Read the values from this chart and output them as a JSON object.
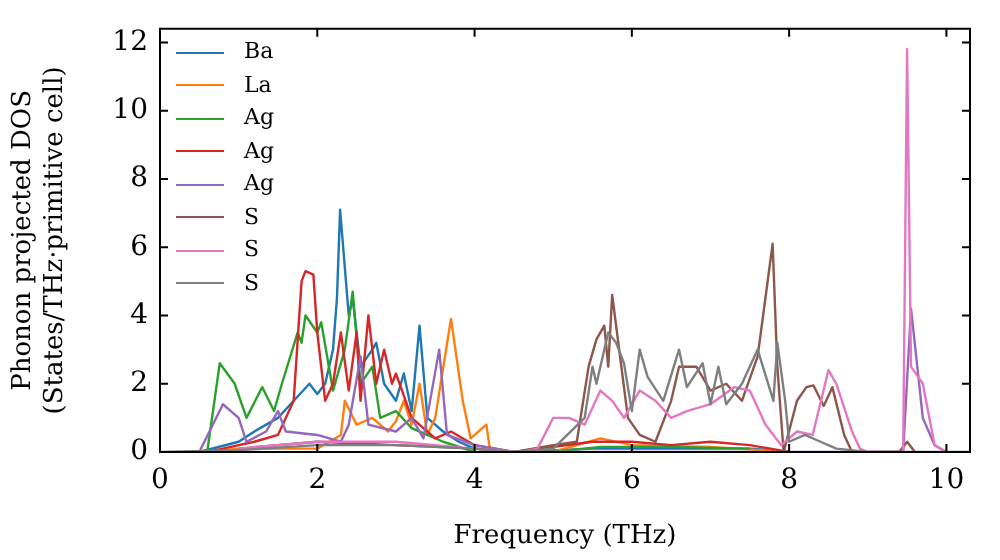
{
  "chart_data": {
    "type": "line",
    "xlabel": "Frequency (THz)",
    "ylabel": "Phonon projected DOS\n(States/THz·primitive cell)",
    "xlim": [
      0,
      10.3
    ],
    "ylim": [
      0,
      12.4
    ],
    "xticks": [
      0,
      2,
      4,
      6,
      8,
      10
    ],
    "yticks": [
      0,
      2,
      4,
      6,
      8,
      10,
      12
    ],
    "legend": "top left",
    "marker": "none",
    "line_style": "solid",
    "series": [
      {
        "name": "Ba",
        "color": "#1f77b4",
        "x": [
          0.5,
          1.0,
          1.2,
          1.5,
          1.7,
          1.9,
          2.0,
          2.1,
          2.2,
          2.25,
          2.29,
          2.4,
          2.45,
          2.55,
          2.7,
          2.75,
          2.85,
          3.0,
          3.1,
          3.2,
          3.3,
          3.4,
          3.6,
          3.8,
          4.0,
          4.5,
          5.5,
          6.5,
          7.5,
          8.0
        ],
        "values": [
          0,
          0.3,
          0.6,
          1.0,
          1.5,
          2.0,
          1.7,
          2.0,
          3.0,
          4.5,
          7.1,
          4.0,
          4.5,
          2.5,
          3.0,
          3.2,
          2.0,
          1.5,
          2.3,
          1.2,
          3.7,
          1.0,
          0.6,
          0.3,
          0.1,
          0,
          0.1,
          0.1,
          0.1,
          0
        ]
      },
      {
        "name": "La",
        "color": "#ff7f0e",
        "x": [
          0.6,
          1.0,
          1.5,
          2.0,
          2.3,
          2.35,
          2.5,
          2.7,
          2.9,
          3.0,
          3.1,
          3.2,
          3.3,
          3.4,
          3.5,
          3.7,
          3.85,
          3.95,
          4.15,
          4.2,
          5.0,
          5.6,
          6.0,
          7.0,
          8.0
        ],
        "values": [
          0,
          0.1,
          0.1,
          0.1,
          0.5,
          1.5,
          0.8,
          1.0,
          0.6,
          0.9,
          1.5,
          0.8,
          2.0,
          0.5,
          1.0,
          3.9,
          1.5,
          0.4,
          0.8,
          0,
          0,
          0.4,
          0.2,
          0.15,
          0
        ]
      },
      {
        "name": "Ag",
        "color": "#2ca02c",
        "x": [
          0.6,
          0.76,
          0.95,
          1.1,
          1.3,
          1.45,
          1.55,
          1.75,
          1.8,
          1.85,
          2.0,
          2.05,
          2.2,
          2.35,
          2.45,
          2.55,
          2.7,
          2.8,
          3.0,
          3.2,
          3.4,
          3.6,
          4.0,
          5.0,
          5.6,
          6.5,
          7.5
        ],
        "values": [
          0,
          2.6,
          2.0,
          1.0,
          1.9,
          1.2,
          2.0,
          3.5,
          3.2,
          4.0,
          3.5,
          3.8,
          1.8,
          3.0,
          4.7,
          2.0,
          2.5,
          1.0,
          1.2,
          0.7,
          0.5,
          0.3,
          0,
          0,
          0.15,
          0.15,
          0.1
        ]
      },
      {
        "name": "Ag",
        "color": "#d62728",
        "x": [
          0.6,
          0.8,
          1.2,
          1.5,
          1.7,
          1.8,
          1.85,
          1.95,
          2.0,
          2.1,
          2.2,
          2.3,
          2.4,
          2.5,
          2.55,
          2.65,
          2.75,
          2.85,
          2.95,
          3.0,
          3.2,
          3.5,
          3.7,
          4.0,
          4.5,
          5.5,
          6.0,
          6.5,
          7.0,
          7.5,
          8.0
        ],
        "values": [
          0,
          0.1,
          0.3,
          0.5,
          1.5,
          5.0,
          5.3,
          5.2,
          3.5,
          1.5,
          2.0,
          3.5,
          1.8,
          3.5,
          1.5,
          4.0,
          2.0,
          3.0,
          2.0,
          2.3,
          1.0,
          0.4,
          0.6,
          0.2,
          0,
          0.3,
          0.3,
          0.2,
          0.3,
          0.2,
          0
        ]
      },
      {
        "name": "Ag",
        "color": "#9467bd",
        "x": [
          0.5,
          0.8,
          1.0,
          1.1,
          1.35,
          1.5,
          1.6,
          2.0,
          2.3,
          2.4,
          2.55,
          2.65,
          3.0,
          3.2,
          3.35,
          3.55,
          3.65,
          4.0,
          4.5,
          9.45,
          9.55,
          9.7,
          9.85,
          10.0
        ],
        "values": [
          0,
          1.4,
          1.0,
          0.3,
          0.6,
          1.2,
          0.6,
          0.5,
          0.3,
          0.8,
          2.8,
          0.8,
          0.6,
          1.0,
          0.4,
          3.0,
          0.5,
          0.2,
          0,
          0,
          4.2,
          1.0,
          0.2,
          0
        ]
      },
      {
        "name": "S",
        "color": "#8c564b",
        "x": [
          1.0,
          2.0,
          3.0,
          4.0,
          4.5,
          5.0,
          5.3,
          5.45,
          5.55,
          5.65,
          5.7,
          5.75,
          5.85,
          5.95,
          6.1,
          6.3,
          6.5,
          6.6,
          6.82,
          7.0,
          7.2,
          7.4,
          7.6,
          7.79,
          7.85,
          7.93,
          8.1,
          8.22,
          8.31,
          8.44,
          8.55,
          8.7,
          8.8,
          9.4,
          9.5,
          9.6
        ],
        "values": [
          0.1,
          0.3,
          0.2,
          0.1,
          0,
          0.2,
          0.3,
          2.5,
          3.3,
          3.7,
          2.5,
          4.6,
          2.8,
          1.0,
          0.5,
          0.3,
          1.5,
          2.5,
          2.5,
          1.8,
          2.0,
          1.5,
          2.8,
          6.1,
          2.5,
          0,
          1.5,
          1.9,
          1.95,
          1.35,
          1.9,
          0.5,
          0,
          0,
          0.3,
          0
        ]
      },
      {
        "name": "S",
        "color": "#e377c2",
        "x": [
          1.0,
          2.0,
          3.0,
          4.0,
          4.6,
          4.8,
          5.0,
          5.2,
          5.4,
          5.6,
          5.75,
          5.9,
          6.1,
          6.3,
          6.5,
          6.7,
          7.0,
          7.3,
          7.5,
          7.7,
          7.9,
          8.1,
          8.3,
          8.5,
          8.6,
          8.8,
          8.9,
          9.0,
          9.45,
          9.5,
          9.55,
          9.7,
          9.85,
          10.0
        ],
        "values": [
          0.1,
          0.3,
          0.3,
          0.1,
          0,
          0.1,
          1.0,
          1.0,
          0.8,
          1.8,
          1.5,
          1.0,
          1.8,
          1.5,
          1.0,
          1.2,
          1.4,
          1.9,
          1.8,
          0.8,
          0.2,
          0.6,
          0.5,
          2.4,
          2.0,
          0.6,
          0.1,
          0,
          0,
          11.8,
          2.5,
          2.0,
          0.2,
          0
        ]
      },
      {
        "name": "S",
        "color": "#7f7f7f",
        "x": [
          0,
          1.0,
          2.0,
          3.0,
          4.0,
          4.5,
          5.0,
          5.4,
          5.5,
          5.55,
          5.7,
          5.8,
          5.9,
          6.0,
          6.1,
          6.2,
          6.4,
          6.6,
          6.7,
          6.9,
          7.0,
          7.1,
          7.2,
          7.4,
          7.6,
          7.8,
          7.85,
          7.95,
          8.0,
          8.2,
          8.4,
          8.6,
          9.0,
          10.3
        ],
        "values": [
          0,
          0.05,
          0.2,
          0.2,
          0.1,
          0,
          0.1,
          1.0,
          2.5,
          2.0,
          3.5,
          3.2,
          2.6,
          1.2,
          3.0,
          2.2,
          1.5,
          3.0,
          1.9,
          2.6,
          1.4,
          2.5,
          1.4,
          2.0,
          3.0,
          1.5,
          3.2,
          1.5,
          0.3,
          0.5,
          0.3,
          0.1,
          0,
          0
        ]
      }
    ]
  }
}
